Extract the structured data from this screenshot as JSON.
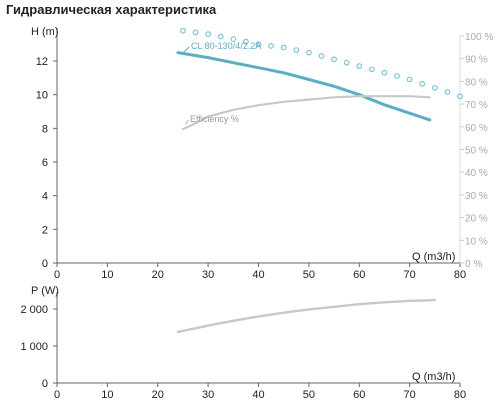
{
  "page": {
    "title": "Гидравлическая характеристика"
  },
  "chart_data": [
    {
      "type": "line",
      "xlabel": "Q (m3/h)",
      "ylabel": "H (m)",
      "y2label": "",
      "xlim": [
        0,
        80
      ],
      "ylim": [
        0,
        14
      ],
      "y2lim": [
        0,
        100
      ],
      "x_ticks": [
        "0",
        "10",
        "20",
        "30",
        "40",
        "50",
        "60",
        "70",
        "80"
      ],
      "y_ticks": [
        "0",
        "2",
        "4",
        "6",
        "8",
        "10",
        "12"
      ],
      "y2_ticks": [
        "0 %",
        "10 %",
        "20 %",
        "30 %",
        "40 %",
        "50 %",
        "60 %",
        "70 %",
        "80 %",
        "90 %",
        "100 %"
      ],
      "grid": false,
      "series": [
        {
          "name": "CL 80-130/4/2.2A",
          "axis": "left",
          "color": "#5aaec4",
          "style": "solid",
          "x": [
            24,
            30,
            35,
            40,
            45,
            50,
            55,
            60,
            65,
            70,
            74
          ],
          "y": [
            12.5,
            12.2,
            11.9,
            11.6,
            11.3,
            10.9,
            10.5,
            10.0,
            9.4,
            8.9,
            8.5
          ]
        },
        {
          "name": "Efficiency %",
          "axis": "right",
          "color": "#c8c8c8",
          "style": "solid",
          "x": [
            25,
            27,
            30,
            35,
            40,
            45,
            50,
            55,
            60,
            65,
            70,
            74
          ],
          "y": [
            59,
            61,
            64.5,
            67.5,
            69.5,
            71,
            72,
            73,
            73.5,
            73.5,
            73.5,
            73
          ]
        },
        {
          "name": "",
          "axis": "left",
          "color": "#6cc0dc",
          "style": "dotted",
          "x": [
            25,
            30,
            35,
            40,
            45,
            50,
            55,
            60,
            65,
            70,
            75,
            80
          ],
          "y": [
            13.8,
            13.6,
            13.3,
            13.0,
            12.8,
            12.5,
            12.1,
            11.7,
            11.3,
            10.9,
            10.4,
            9.9
          ]
        }
      ]
    },
    {
      "type": "line",
      "xlabel": "Q (m3/h)",
      "ylabel": "P (W)",
      "xlim": [
        0,
        80
      ],
      "ylim": [
        0,
        2400
      ],
      "x_ticks": [
        "0",
        "10",
        "20",
        "30",
        "40",
        "50",
        "60",
        "70",
        "80"
      ],
      "y_ticks": [
        "0",
        "1 000",
        "2 000"
      ],
      "y_tick_values": [
        0,
        1000,
        2000
      ],
      "grid": false,
      "series": [
        {
          "name": "",
          "color": "#c8c8c8",
          "style": "solid",
          "x": [
            24,
            30,
            35,
            40,
            45,
            50,
            55,
            60,
            65,
            70,
            75
          ],
          "y": [
            1380,
            1550,
            1680,
            1800,
            1900,
            1990,
            2060,
            2130,
            2180,
            2220,
            2240
          ]
        }
      ]
    }
  ]
}
